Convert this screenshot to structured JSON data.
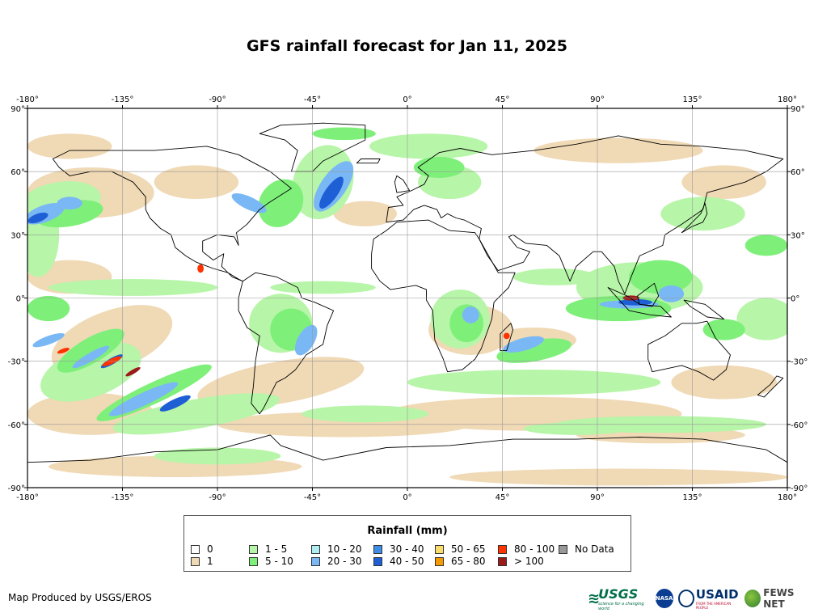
{
  "title": "GFS rainfall forecast for Jan 11, 2025",
  "map": {
    "lon_ticks": [
      "-180°",
      "-135°",
      "-90°",
      "-45°",
      "0°",
      "45°",
      "90°",
      "135°",
      "180°"
    ],
    "lat_ticks": [
      "90°",
      "60°",
      "30°",
      "0°",
      "-30°",
      "-60°",
      "-90°"
    ],
    "colors": {
      "ocean_bg": "#ffffff",
      "class_1": "#f0d9b5",
      "class_1_5": "#b7f5a8",
      "class_5_10": "#7ef07a",
      "class_10_20": "#aeeef0",
      "class_20_30": "#79b8f4",
      "class_30_40": "#3e8ee8",
      "class_40_50": "#1f5fd6",
      "class_heavy": "#ff3300",
      "class_extreme": "#9b1b1b"
    }
  },
  "legend": {
    "title": "Rainfall (mm)",
    "items": [
      {
        "label": "0",
        "color": "#ffffff"
      },
      {
        "label": "1",
        "color": "#f0d9b5"
      },
      {
        "label": "1 - 5",
        "color": "#b7f5a8"
      },
      {
        "label": "5 - 10",
        "color": "#7ef07a"
      },
      {
        "label": "10 - 20",
        "color": "#aeeef0"
      },
      {
        "label": "20 - 30",
        "color": "#79b8f4"
      },
      {
        "label": "30 - 40",
        "color": "#3e8ee8"
      },
      {
        "label": "40 - 50",
        "color": "#1f5fd6"
      },
      {
        "label": "50 - 65",
        "color": "#f9dc6a"
      },
      {
        "label": "65 - 80",
        "color": "#f59b00"
      },
      {
        "label": "80 - 100",
        "color": "#ff3300"
      },
      {
        "label": "> 100",
        "color": "#9b1b1b"
      },
      {
        "label": "No Data",
        "color": "#999999"
      }
    ]
  },
  "credit": "Map Produced by USGS/EROS",
  "logos": {
    "usgs": "USGS",
    "usgs_tagline": "science for a changing world",
    "nasa": "NASA",
    "usaid": "USAID",
    "usaid_sub": "FROM THE AMERICAN PEOPLE",
    "fews": "FEWS NET"
  }
}
